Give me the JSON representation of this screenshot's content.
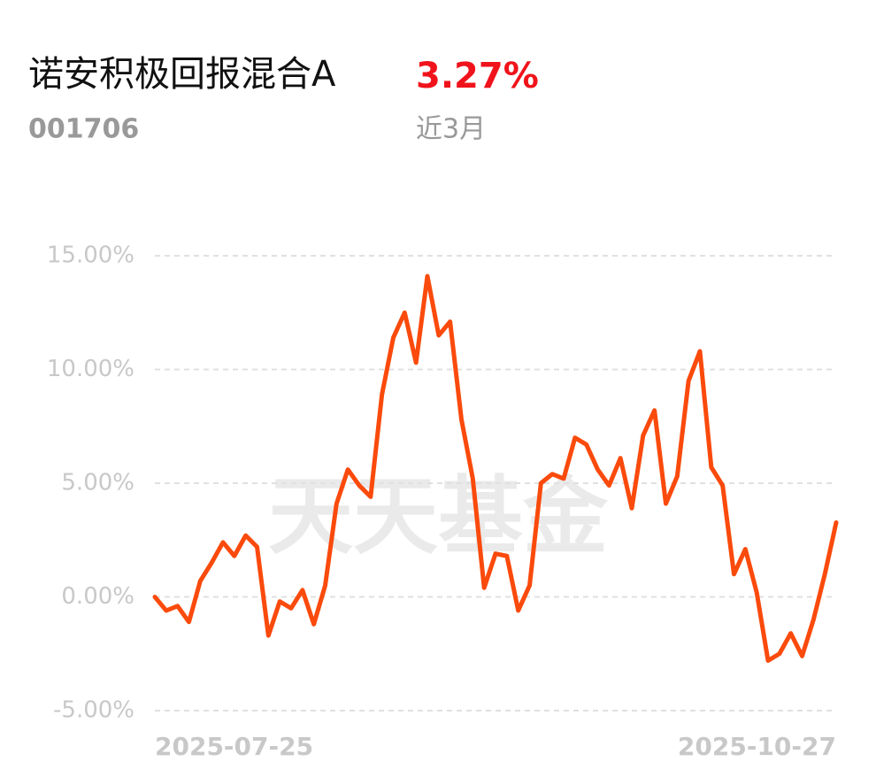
{
  "chart_data": {
    "type": "line",
    "title": "诺安积极回报混合A",
    "code": "001706",
    "period_return": "3.27%",
    "period": "近3月",
    "watermark": "天天基金",
    "categories": [
      "2025-07-25",
      null,
      null,
      null,
      null,
      null,
      null,
      null,
      null,
      null,
      null,
      null,
      null,
      null,
      null,
      null,
      null,
      null,
      null,
      null,
      null,
      null,
      null,
      null,
      null,
      null,
      null,
      null,
      null,
      null,
      null,
      null,
      null,
      null,
      null,
      null,
      null,
      null,
      null,
      null,
      null,
      null,
      null,
      null,
      null,
      null,
      null,
      null,
      null,
      null,
      null,
      null,
      null,
      null,
      null,
      null,
      null,
      null,
      null,
      null,
      "2025-10-27"
    ],
    "series": [
      {
        "name": "诺安积极回报混合A",
        "color": "#fa4a0c",
        "values": [
          0,
          -0.6,
          -0.4,
          -1.1,
          0.7,
          1.5,
          2.4,
          1.8,
          2.7,
          2.2,
          -1.7,
          -0.2,
          -0.5,
          0.3,
          -1.2,
          0.5,
          4.1,
          5.6,
          4.9,
          4.4,
          8.9,
          11.4,
          12.5,
          10.3,
          14.1,
          11.5,
          12.1,
          7.8,
          5.2,
          0.4,
          1.9,
          1.8,
          -0.6,
          0.5,
          5.0,
          5.4,
          5.2,
          7.0,
          6.7,
          5.6,
          4.9,
          6.1,
          3.9,
          7.1,
          8.2,
          4.1,
          5.3,
          9.5,
          10.8,
          5.7,
          4.9,
          1.0,
          2.1,
          0.2,
          -2.8,
          -2.5,
          -1.6,
          -2.6,
          -1.0,
          1.0,
          3.27
        ]
      }
    ],
    "ylim": [
      -5,
      15
    ],
    "yticks": [
      {
        "value": 15,
        "label": "15.00%"
      },
      {
        "value": 10,
        "label": "10.00%"
      },
      {
        "value": 5,
        "label": "5.00%"
      },
      {
        "value": 0,
        "label": "0.00%"
      },
      {
        "value": -5,
        "label": "-5.00%"
      }
    ],
    "grid": true
  }
}
